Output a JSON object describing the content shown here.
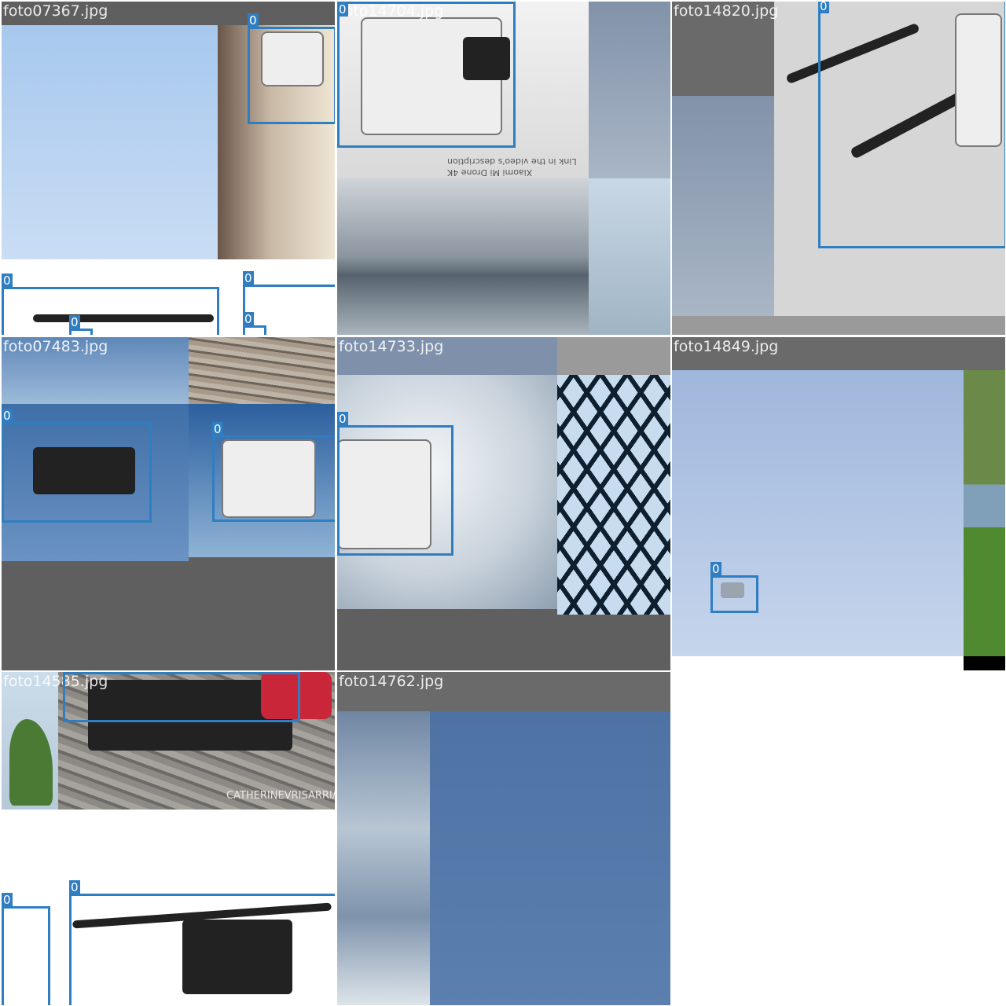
{
  "mosaic": {
    "tiles": [
      {
        "filename": "foto07367.jpg",
        "labels": [
          "0",
          "0",
          "0",
          "0",
          "0"
        ]
      },
      {
        "filename": "foto14704.jpg",
        "labels": [
          "0"
        ],
        "caption_line1": "Xiaomi Mi Drone 4K",
        "caption_line2": "Link in the video's description"
      },
      {
        "filename": "foto14820.jpg",
        "labels": [
          "0"
        ]
      },
      {
        "filename": "foto07483.jpg",
        "labels": [
          "0",
          "0"
        ]
      },
      {
        "filename": "foto14733.jpg",
        "labels": [
          "0"
        ]
      },
      {
        "filename": "foto14849.jpg",
        "labels": [
          "0"
        ]
      },
      {
        "filename": "foto14585.jpg",
        "labels": [
          "0",
          "0",
          "0"
        ],
        "watermark": "CATHERINEVRISARRI/C"
      },
      {
        "filename": "foto14762.jpg",
        "labels": []
      }
    ],
    "box_color": "#2f7ec1",
    "pad_color": "#5f5f5f"
  }
}
